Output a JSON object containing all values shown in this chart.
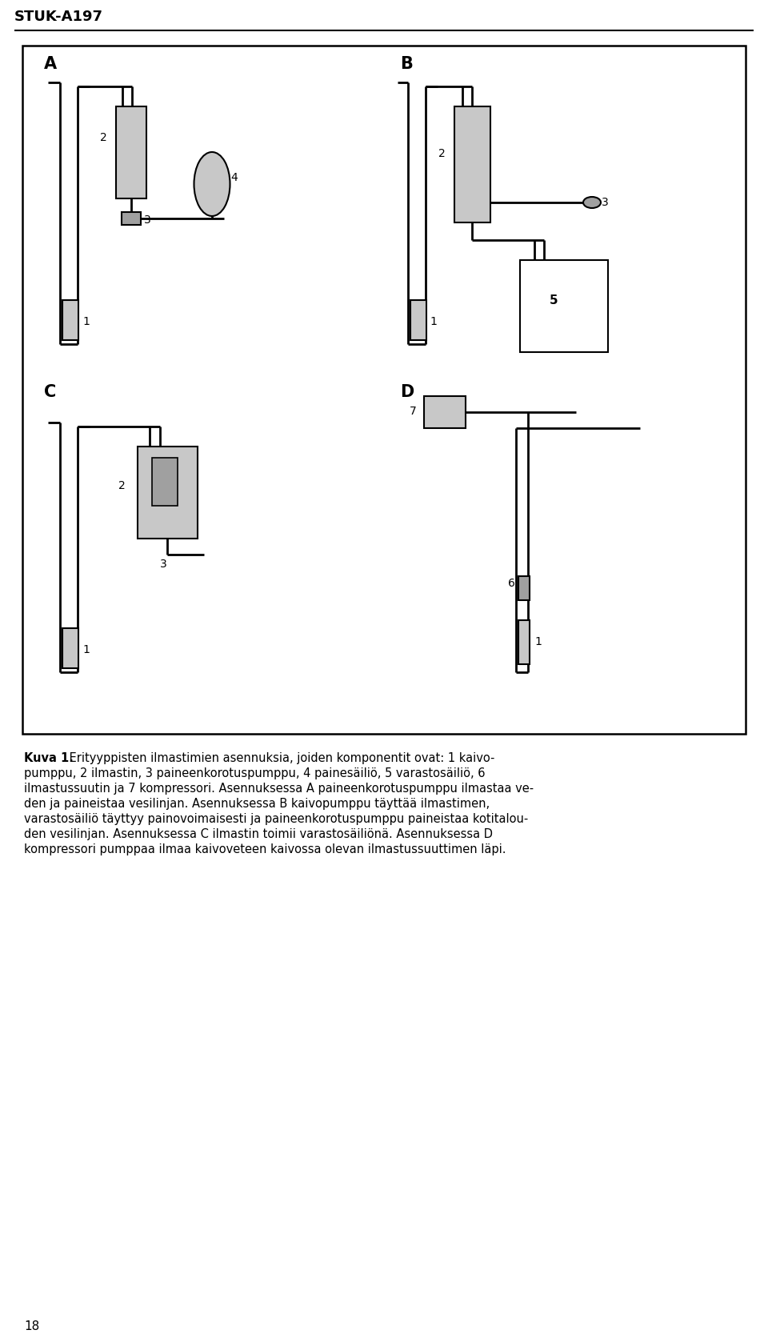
{
  "title": "STUK-A197",
  "page_number": "18",
  "bg": "#ffffff",
  "gray1": "#c8c8c8",
  "gray2": "#a0a0a0",
  "gray3": "#b8b8b8",
  "black": "#000000",
  "caption_line1": "Kuva 1. Erityyppisten ilmastimien asennuksia, joiden komponentit ovat: 1 kaivo-",
  "caption_line2": "pumppu, 2 ilmastin, 3 paineenkorotuspumppu, 4 painesäiliö, 5 varastosäiliö, 6",
  "caption_line3": "ilmastussuutin ja 7 kompressori. Asennuksessa A paineenkorotuspumppu ilmastaa ve-",
  "caption_line4": "den ja paineistaa vesilinjan. Asennuksessa B kaivopumppu täyttää ilmastimen,",
  "caption_line5": "varastosäiliö täyttyy painovoimaisesti ja paineenkorotuspumppu paineistaa kotitalou-",
  "caption_line6": "den vesilinjan. Asennuksessa C ilmastin toimii varastosäiliönä. Asennuksessa D",
  "caption_line7": "kompressori pumppaa ilmaa kaivoveteen kaivossa olevan ilmastussuuttimen läpi."
}
